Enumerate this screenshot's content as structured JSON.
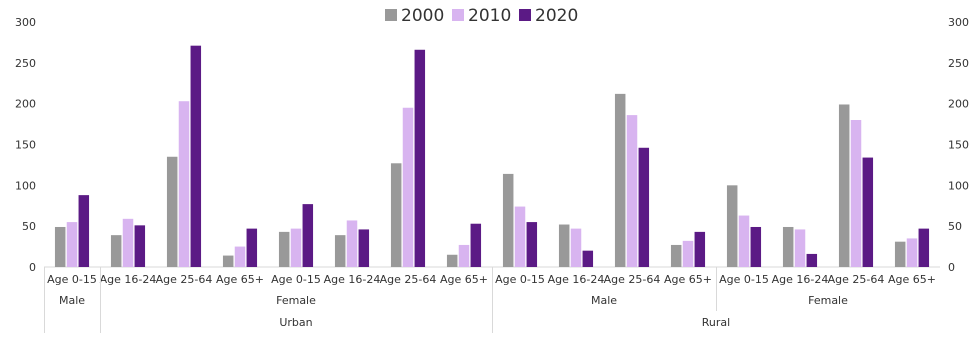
{
  "chart_data": {
    "type": "bar",
    "categories": [
      "Age 0-15",
      "Age 16-24",
      "Age 25-64",
      "Age 65+",
      "Age 0-15",
      "Age 16-24",
      "Age 25-64",
      "Age 65+",
      "Age 0-15",
      "Age 16-24",
      "Age 25-64",
      "Age 65+",
      "Age 0-15",
      "Age 16-24",
      "Age 25-64",
      "Age 65+"
    ],
    "series": [
      {
        "name": "2000",
        "color": "#999999",
        "values": [
          49,
          39,
          135,
          14,
          43,
          39,
          127,
          15,
          114,
          52,
          212,
          27,
          100,
          49,
          199,
          31
        ]
      },
      {
        "name": "2010",
        "color": "#d8b4f0",
        "values": [
          55,
          59,
          203,
          25,
          47,
          57,
          195,
          27,
          74,
          47,
          186,
          32,
          63,
          46,
          180,
          35
        ]
      },
      {
        "name": "2020",
        "color": "#5b1a85",
        "values": [
          88,
          51,
          271,
          47,
          77,
          46,
          266,
          53,
          55,
          20,
          146,
          43,
          49,
          16,
          134,
          47
        ]
      }
    ],
    "ylim": [
      0,
      300
    ],
    "yticks": [
      0,
      50,
      100,
      150,
      200,
      250,
      300
    ],
    "secondary_axis": true,
    "legend_position": "top-center",
    "grid": false,
    "group_rows": [
      [
        {
          "label": "Male",
          "span": 1
        },
        {
          "label": "Female",
          "span": 7
        },
        {
          "label": "Male",
          "span": 4
        },
        {
          "label": "Female",
          "span": 4
        }
      ],
      [
        {
          "label": "",
          "span": 1
        },
        {
          "label": "Urban",
          "span": 7
        },
        {
          "label": "Rural",
          "span": 8
        }
      ]
    ]
  }
}
